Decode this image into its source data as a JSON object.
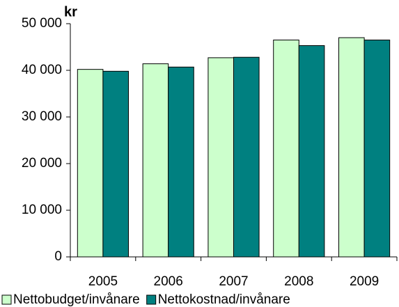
{
  "chart_data": {
    "type": "bar",
    "unit_label": "kr",
    "categories": [
      "2005",
      "2006",
      "2007",
      "2008",
      "2009"
    ],
    "series": [
      {
        "name": "Nettobudget/invånare",
        "color": "#ccffcc",
        "values": [
          40200,
          41400,
          42700,
          46500,
          47000
        ]
      },
      {
        "name": "Nettokostnad/invånare",
        "color": "#008080",
        "values": [
          39800,
          40700,
          42800,
          45300,
          46500
        ]
      }
    ],
    "ylim": [
      0,
      50000
    ],
    "yticks": [
      0,
      {
        "value": 10000,
        "label": "10 000"
      },
      {
        "value": 20000,
        "label": "20 000"
      },
      {
        "value": 30000,
        "label": "30 000"
      },
      {
        "value": 40000,
        "label": "40 000"
      },
      {
        "value": 50000,
        "label": "50 000"
      }
    ],
    "grid": false,
    "legend": "bottom"
  }
}
